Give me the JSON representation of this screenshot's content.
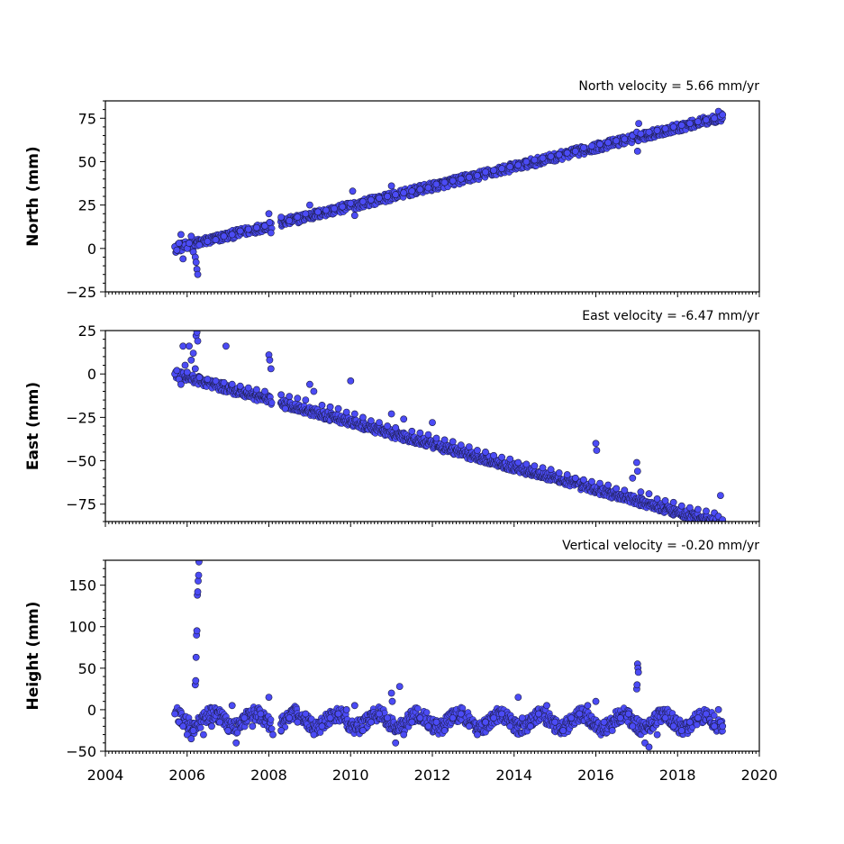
{
  "marker_fill": "#4b4bf5",
  "marker_edge": "#1a1a40",
  "chart_data": [
    {
      "type": "scatter",
      "ylabel": "North (mm)",
      "velocity_label": "North velocity = 5.66 mm/yr",
      "xlim": [
        2004,
        2020
      ],
      "ylim": [
        -25,
        85
      ],
      "yticks": [
        -25,
        0,
        25,
        50,
        75
      ],
      "ytick_labels": [
        "−25",
        "0",
        "25",
        "50",
        "75"
      ],
      "trend": {
        "x0": 2005.7,
        "y0": 0,
        "slope": 5.66
      },
      "points": [
        [
          2005.7,
          1
        ],
        [
          2005.75,
          -1
        ],
        [
          2005.8,
          3
        ],
        [
          2005.85,
          8
        ],
        [
          2005.9,
          -6
        ],
        [
          2005.95,
          2
        ],
        [
          2006.0,
          0
        ],
        [
          2006.05,
          3
        ],
        [
          2006.1,
          7
        ],
        [
          2006.15,
          -2
        ],
        [
          2006.2,
          -5
        ],
        [
          2006.22,
          -8
        ],
        [
          2006.24,
          -12
        ],
        [
          2006.26,
          -15
        ],
        [
          2006.3,
          2
        ],
        [
          2006.5,
          4
        ],
        [
          2006.7,
          5
        ],
        [
          2006.9,
          7
        ],
        [
          2007.1,
          8
        ],
        [
          2007.3,
          10
        ],
        [
          2007.5,
          11
        ],
        [
          2007.7,
          12
        ],
        [
          2007.9,
          13
        ],
        [
          2008.0,
          20
        ],
        [
          2008.02,
          15
        ],
        [
          2008.05,
          9
        ],
        [
          2008.3,
          18
        ],
        [
          2008.5,
          16
        ],
        [
          2008.7,
          18
        ],
        [
          2008.9,
          20
        ],
        [
          2009.0,
          25
        ],
        [
          2009.2,
          21
        ],
        [
          2009.4,
          22
        ],
        [
          2009.6,
          23
        ],
        [
          2009.8,
          24
        ],
        [
          2010.0,
          26
        ],
        [
          2010.05,
          33
        ],
        [
          2010.1,
          19
        ],
        [
          2010.3,
          27
        ],
        [
          2010.5,
          28
        ],
        [
          2010.7,
          29
        ],
        [
          2010.9,
          30
        ],
        [
          2011.0,
          36
        ],
        [
          2011.1,
          31
        ],
        [
          2011.3,
          32
        ],
        [
          2011.5,
          33
        ],
        [
          2011.7,
          34
        ],
        [
          2011.9,
          35
        ],
        [
          2012.1,
          37
        ],
        [
          2012.3,
          38
        ],
        [
          2012.5,
          39
        ],
        [
          2012.7,
          40
        ],
        [
          2012.9,
          41
        ],
        [
          2013.1,
          42
        ],
        [
          2013.3,
          44
        ],
        [
          2013.5,
          45
        ],
        [
          2013.7,
          46
        ],
        [
          2013.9,
          47
        ],
        [
          2014.1,
          48
        ],
        [
          2014.3,
          50
        ],
        [
          2014.5,
          51
        ],
        [
          2014.7,
          52
        ],
        [
          2014.9,
          53
        ],
        [
          2015.1,
          54
        ],
        [
          2015.3,
          55
        ],
        [
          2015.5,
          56
        ],
        [
          2015.7,
          58
        ],
        [
          2015.9,
          59
        ],
        [
          2016.1,
          60
        ],
        [
          2016.3,
          61
        ],
        [
          2016.5,
          62
        ],
        [
          2016.7,
          63
        ],
        [
          2016.9,
          65
        ],
        [
          2017.0,
          67
        ],
        [
          2017.02,
          56
        ],
        [
          2017.05,
          72
        ],
        [
          2017.1,
          66
        ],
        [
          2017.3,
          67
        ],
        [
          2017.5,
          68
        ],
        [
          2017.7,
          69
        ],
        [
          2017.9,
          70
        ],
        [
          2018.1,
          71
        ],
        [
          2018.3,
          72
        ],
        [
          2018.5,
          73
        ],
        [
          2018.7,
          74
        ],
        [
          2018.9,
          75
        ],
        [
          2019.0,
          79
        ],
        [
          2019.05,
          76
        ],
        [
          2019.1,
          77
        ]
      ]
    },
    {
      "type": "scatter",
      "ylabel": "East (mm)",
      "velocity_label": "East velocity = -6.47 mm/yr",
      "xlim": [
        2004,
        2020
      ],
      "ylim": [
        -85,
        25
      ],
      "yticks": [
        -75,
        -50,
        -25,
        0,
        25
      ],
      "ytick_labels": [
        "−75",
        "−50",
        "−25",
        "0",
        "25"
      ],
      "trend": {
        "x0": 2005.7,
        "y0": 0,
        "slope": -6.47
      },
      "points": [
        [
          2005.7,
          0
        ],
        [
          2005.75,
          2
        ],
        [
          2005.8,
          -3
        ],
        [
          2005.85,
          -6
        ],
        [
          2005.9,
          16
        ],
        [
          2005.95,
          5
        ],
        [
          2006.0,
          1
        ],
        [
          2006.05,
          16
        ],
        [
          2006.1,
          8
        ],
        [
          2006.15,
          12
        ],
        [
          2006.2,
          3
        ],
        [
          2006.22,
          22
        ],
        [
          2006.24,
          24
        ],
        [
          2006.26,
          19
        ],
        [
          2006.3,
          -2
        ],
        [
          2006.5,
          -3
        ],
        [
          2006.7,
          -4
        ],
        [
          2006.9,
          -5
        ],
        [
          2006.95,
          16
        ],
        [
          2007.1,
          -6
        ],
        [
          2007.3,
          -7
        ],
        [
          2007.5,
          -8
        ],
        [
          2007.7,
          -9
        ],
        [
          2007.9,
          -10
        ],
        [
          2008.0,
          11
        ],
        [
          2008.02,
          8
        ],
        [
          2008.05,
          3
        ],
        [
          2008.3,
          -12
        ],
        [
          2008.4,
          -20
        ],
        [
          2008.5,
          -13
        ],
        [
          2008.7,
          -14
        ],
        [
          2008.9,
          -15
        ],
        [
          2009.0,
          -6
        ],
        [
          2009.1,
          -10
        ],
        [
          2009.3,
          -18
        ],
        [
          2009.5,
          -19
        ],
        [
          2009.7,
          -20
        ],
        [
          2009.9,
          -22
        ],
        [
          2010.0,
          -4
        ],
        [
          2010.1,
          -23
        ],
        [
          2010.3,
          -25
        ],
        [
          2010.5,
          -27
        ],
        [
          2010.7,
          -28
        ],
        [
          2010.9,
          -30
        ],
        [
          2011.0,
          -23
        ],
        [
          2011.1,
          -31
        ],
        [
          2011.3,
          -26
        ],
        [
          2011.5,
          -33
        ],
        [
          2011.7,
          -34
        ],
        [
          2011.9,
          -35
        ],
        [
          2012.0,
          -28
        ],
        [
          2012.1,
          -37
        ],
        [
          2012.3,
          -38
        ],
        [
          2012.5,
          -39
        ],
        [
          2012.7,
          -41
        ],
        [
          2012.9,
          -42
        ],
        [
          2013.1,
          -44
        ],
        [
          2013.3,
          -45
        ],
        [
          2013.5,
          -47
        ],
        [
          2013.7,
          -48
        ],
        [
          2013.9,
          -49
        ],
        [
          2014.1,
          -51
        ],
        [
          2014.3,
          -52
        ],
        [
          2014.5,
          -53
        ],
        [
          2014.7,
          -54
        ],
        [
          2014.9,
          -55
        ],
        [
          2015.1,
          -57
        ],
        [
          2015.3,
          -58
        ],
        [
          2015.5,
          -60
        ],
        [
          2015.7,
          -61
        ],
        [
          2015.9,
          -62
        ],
        [
          2016.0,
          -40
        ],
        [
          2016.02,
          -44
        ],
        [
          2016.1,
          -63
        ],
        [
          2016.3,
          -64
        ],
        [
          2016.5,
          -66
        ],
        [
          2016.7,
          -67
        ],
        [
          2016.9,
          -60
        ],
        [
          2017.0,
          -51
        ],
        [
          2017.02,
          -56
        ],
        [
          2017.1,
          -68
        ],
        [
          2017.3,
          -69
        ],
        [
          2017.5,
          -72
        ],
        [
          2017.7,
          -73
        ],
        [
          2017.9,
          -74
        ],
        [
          2018.1,
          -76
        ],
        [
          2018.3,
          -77
        ],
        [
          2018.5,
          -78
        ],
        [
          2018.7,
          -79
        ],
        [
          2018.9,
          -80
        ],
        [
          2019.0,
          -82
        ],
        [
          2019.05,
          -70
        ],
        [
          2019.1,
          -84
        ]
      ]
    },
    {
      "type": "scatter",
      "ylabel": "Height (mm)",
      "velocity_label": "Vertical velocity = -0.20 mm/yr",
      "xlim": [
        2004,
        2020
      ],
      "ylim": [
        -50,
        180
      ],
      "yticks": [
        -50,
        0,
        50,
        100,
        150
      ],
      "ytick_labels": [
        "−50",
        "0",
        "50",
        "100",
        "150"
      ],
      "xticks": [
        2004,
        2006,
        2008,
        2010,
        2012,
        2014,
        2016,
        2018,
        2020
      ],
      "xtick_labels": [
        "2004",
        "2006",
        "2008",
        "2010",
        "2012",
        "2014",
        "2016",
        "2018",
        "2020"
      ],
      "trend": {
        "x0": 2005.7,
        "y0": -12,
        "slope": -0.2
      },
      "points": [
        [
          2005.7,
          -5
        ],
        [
          2005.8,
          -15
        ],
        [
          2005.9,
          -20
        ],
        [
          2006.0,
          -30
        ],
        [
          2006.1,
          -35
        ],
        [
          2006.15,
          -25
        ],
        [
          2006.2,
          30
        ],
        [
          2006.21,
          35
        ],
        [
          2006.22,
          63
        ],
        [
          2006.23,
          90
        ],
        [
          2006.24,
          95
        ],
        [
          2006.25,
          138
        ],
        [
          2006.26,
          142
        ],
        [
          2006.27,
          155
        ],
        [
          2006.28,
          162
        ],
        [
          2006.29,
          178
        ],
        [
          2006.4,
          -30
        ],
        [
          2006.6,
          -20
        ],
        [
          2006.8,
          -15
        ],
        [
          2007.0,
          -25
        ],
        [
          2007.1,
          5
        ],
        [
          2007.2,
          -40
        ],
        [
          2007.4,
          -10
        ],
        [
          2007.6,
          -20
        ],
        [
          2007.8,
          -5
        ],
        [
          2008.0,
          15
        ],
        [
          2008.1,
          -30
        ],
        [
          2008.3,
          -25
        ],
        [
          2008.5,
          -10
        ],
        [
          2008.7,
          -15
        ],
        [
          2008.9,
          -5
        ],
        [
          2009.1,
          -30
        ],
        [
          2009.3,
          -20
        ],
        [
          2009.5,
          -10
        ],
        [
          2009.7,
          -5
        ],
        [
          2009.9,
          0
        ],
        [
          2010.1,
          5
        ],
        [
          2010.3,
          -25
        ],
        [
          2010.5,
          -15
        ],
        [
          2010.7,
          -5
        ],
        [
          2010.9,
          -10
        ],
        [
          2011.0,
          20
        ],
        [
          2011.02,
          10
        ],
        [
          2011.1,
          -40
        ],
        [
          2011.2,
          28
        ],
        [
          2011.3,
          -30
        ],
        [
          2011.5,
          -15
        ],
        [
          2011.7,
          -10
        ],
        [
          2011.9,
          -20
        ],
        [
          2012.1,
          -15
        ],
        [
          2012.3,
          -25
        ],
        [
          2012.5,
          -10
        ],
        [
          2012.7,
          -5
        ],
        [
          2012.9,
          -20
        ],
        [
          2013.1,
          -30
        ],
        [
          2013.3,
          -15
        ],
        [
          2013.5,
          -10
        ],
        [
          2013.7,
          -5
        ],
        [
          2013.9,
          -20
        ],
        [
          2014.1,
          15
        ],
        [
          2014.2,
          -10
        ],
        [
          2014.4,
          -20
        ],
        [
          2014.6,
          -5
        ],
        [
          2014.8,
          5
        ],
        [
          2015.0,
          -15
        ],
        [
          2015.2,
          -25
        ],
        [
          2015.4,
          -10
        ],
        [
          2015.6,
          -5
        ],
        [
          2015.8,
          5
        ],
        [
          2016.0,
          10
        ],
        [
          2016.2,
          -15
        ],
        [
          2016.4,
          -25
        ],
        [
          2016.6,
          -10
        ],
        [
          2016.8,
          -5
        ],
        [
          2016.9,
          -20
        ],
        [
          2017.0,
          25
        ],
        [
          2017.01,
          30
        ],
        [
          2017.02,
          55
        ],
        [
          2017.03,
          50
        ],
        [
          2017.04,
          45
        ],
        [
          2017.2,
          -40
        ],
        [
          2017.3,
          -45
        ],
        [
          2017.5,
          -30
        ],
        [
          2017.7,
          -10
        ],
        [
          2017.9,
          -20
        ],
        [
          2018.1,
          -25
        ],
        [
          2018.3,
          -15
        ],
        [
          2018.5,
          -10
        ],
        [
          2018.7,
          -5
        ],
        [
          2018.9,
          -20
        ],
        [
          2019.0,
          0
        ],
        [
          2019.05,
          -15
        ],
        [
          2019.1,
          -20
        ]
      ]
    }
  ]
}
